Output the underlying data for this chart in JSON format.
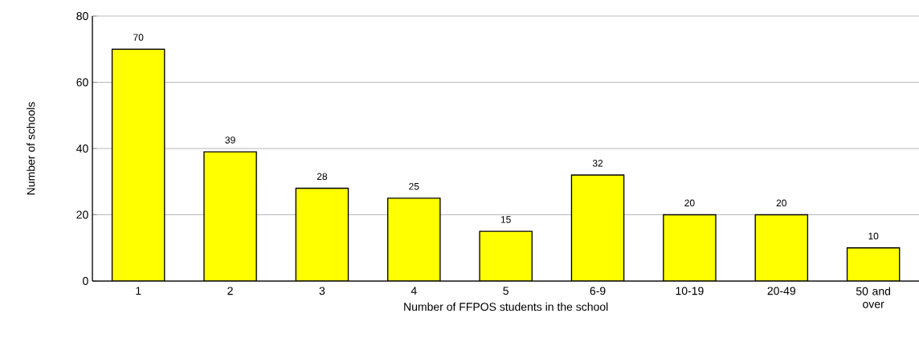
{
  "chart_data": {
    "type": "bar",
    "xlabel": "Number of FFPOS students in the school",
    "ylabel": "Number of schools",
    "categories": [
      "1",
      "2",
      "3",
      "4",
      "5",
      "6-9",
      "10-19",
      "20-49",
      "50 and over"
    ],
    "values": [
      70,
      39,
      28,
      25,
      15,
      32,
      20,
      20,
      10
    ],
    "color": "#ffff00",
    "data_labels": true,
    "grid": "y",
    "ylim": [
      0,
      80
    ],
    "yticks": [
      0,
      20,
      40,
      60,
      80
    ]
  }
}
